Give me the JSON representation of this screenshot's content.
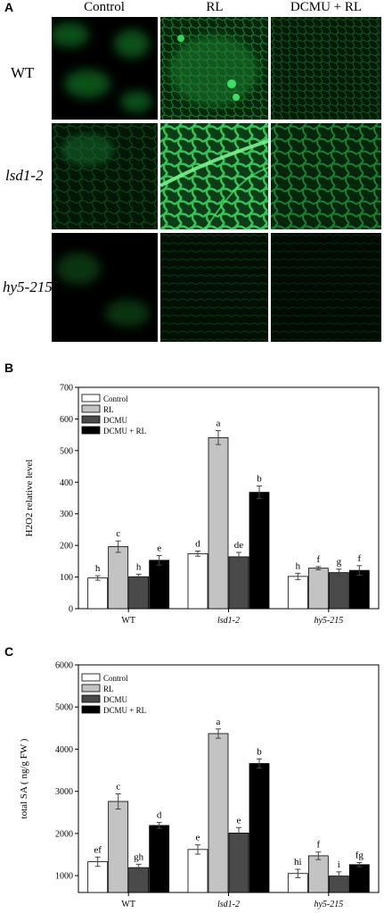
{
  "panel_a": {
    "letter": "A",
    "columns": [
      "Control",
      "RL",
      "DCMU + RL"
    ],
    "rows": [
      {
        "label": "WT",
        "italic": false
      },
      {
        "label": "lsd1-2",
        "italic": true
      },
      {
        "label": "hy5-215",
        "italic": true
      }
    ]
  },
  "chart_data": [
    {
      "panel": "B",
      "type": "bar",
      "ylabel": "H2O2 relative level",
      "ylim": [
        0,
        700
      ],
      "yticks": [
        0,
        100,
        200,
        300,
        400,
        500,
        600,
        700
      ],
      "categories": [
        "WT",
        "lsd1-2",
        "hy5-215"
      ],
      "category_italic": [
        false,
        true,
        true
      ],
      "series": [
        {
          "name": "Control",
          "color": "#ffffff",
          "values": [
            97,
            174,
            102
          ],
          "errors": [
            7,
            8,
            10
          ],
          "letters": [
            "h",
            "d",
            "h"
          ]
        },
        {
          "name": "RL",
          "color": "#c3c3c3",
          "values": [
            196,
            541,
            128
          ],
          "errors": [
            18,
            22,
            5
          ],
          "letters": [
            "c",
            "a",
            "f"
          ]
        },
        {
          "name": "DCMU",
          "color": "#4a4a4a",
          "values": [
            101,
            164,
            114
          ],
          "errors": [
            8,
            14,
            11
          ],
          "letters": [
            "h",
            "de",
            "g"
          ]
        },
        {
          "name": "DCMU + RL",
          "color": "#000000",
          "values": [
            153,
            368,
            121
          ],
          "errors": [
            15,
            20,
            15
          ],
          "letters": [
            "e",
            "b",
            "f"
          ]
        }
      ],
      "legend_position": "top-left"
    },
    {
      "panel": "C",
      "type": "bar",
      "ylabel": "total SA ( ng/g FW )",
      "ylim": [
        600,
        6000
      ],
      "yticks": [
        1000,
        2000,
        3000,
        4000,
        5000,
        6000
      ],
      "categories": [
        "WT",
        "lsd1-2",
        "hy5-215"
      ],
      "category_italic": [
        false,
        true,
        true
      ],
      "series": [
        {
          "name": "Control",
          "color": "#ffffff",
          "values": [
            1330,
            1620,
            1050
          ],
          "errors": [
            110,
            110,
            100
          ],
          "letters": [
            "ef",
            "e",
            "hi"
          ]
        },
        {
          "name": "RL",
          "color": "#c3c3c3",
          "values": [
            2760,
            4370,
            1470
          ],
          "errors": [
            180,
            110,
            90
          ],
          "letters": [
            "c",
            "a",
            "f"
          ]
        },
        {
          "name": "DCMU",
          "color": "#4a4a4a",
          "values": [
            1190,
            2010,
            990
          ],
          "errors": [
            80,
            130,
            100
          ],
          "letters": [
            "gh",
            "e",
            "i"
          ]
        },
        {
          "name": "DCMU + RL",
          "color": "#000000",
          "values": [
            2190,
            3660,
            1260
          ],
          "errors": [
            70,
            110,
            50
          ],
          "letters": [
            "d",
            "b",
            "fg"
          ]
        }
      ],
      "legend_position": "top-left"
    }
  ]
}
